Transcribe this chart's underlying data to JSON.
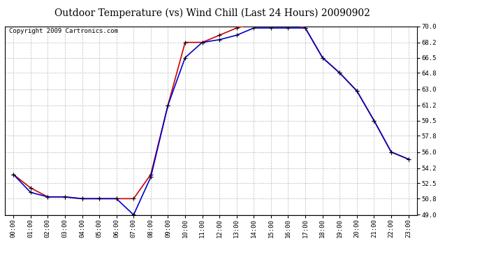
{
  "title": "Outdoor Temperature (vs) Wind Chill (Last 24 Hours) 20090902",
  "copyright": "Copyright 2009 Cartronics.com",
  "x_labels": [
    "00:00",
    "01:00",
    "02:00",
    "03:00",
    "04:00",
    "05:00",
    "06:00",
    "07:00",
    "08:00",
    "09:00",
    "10:00",
    "11:00",
    "12:00",
    "13:00",
    "14:00",
    "15:00",
    "16:00",
    "17:00",
    "18:00",
    "19:00",
    "20:00",
    "21:00",
    "22:00",
    "23:00"
  ],
  "temp_red": [
    53.5,
    52.0,
    51.0,
    51.0,
    50.8,
    50.8,
    50.8,
    50.8,
    53.5,
    61.2,
    68.2,
    68.2,
    69.0,
    69.8,
    70.3,
    70.5,
    70.5,
    69.8,
    66.5,
    64.8,
    62.8,
    59.5,
    56.0,
    55.2
  ],
  "temp_blue": [
    53.5,
    51.5,
    51.0,
    51.0,
    50.8,
    50.8,
    50.8,
    49.0,
    53.2,
    61.2,
    66.5,
    68.2,
    68.5,
    69.0,
    69.8,
    69.8,
    69.8,
    69.8,
    66.5,
    64.8,
    62.8,
    59.5,
    56.0,
    55.2
  ],
  "ylim": [
    49.0,
    70.0
  ],
  "yticks": [
    49.0,
    50.8,
    52.5,
    54.2,
    56.0,
    57.8,
    59.5,
    61.2,
    63.0,
    64.8,
    66.5,
    68.2,
    70.0
  ],
  "red_color": "#cc0000",
  "blue_color": "#0000cc",
  "bg_color": "#ffffff",
  "grid_color": "#bbbbbb",
  "title_fontsize": 10,
  "copyright_fontsize": 6.5
}
